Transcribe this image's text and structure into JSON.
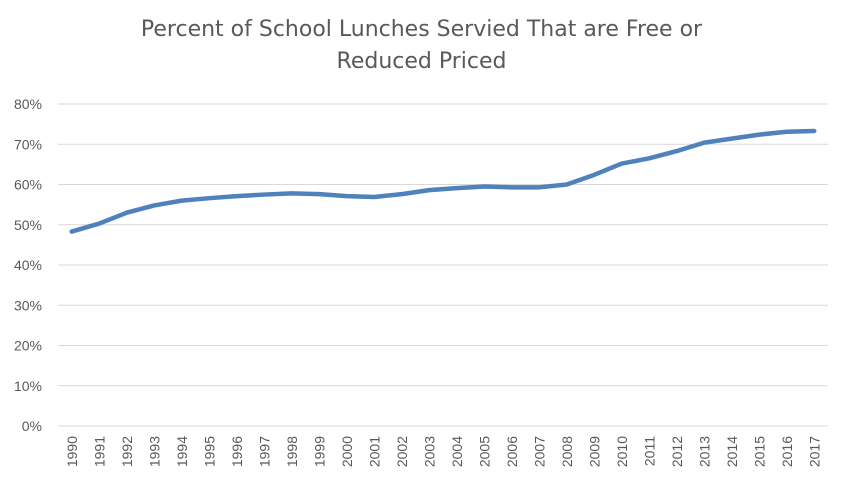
{
  "chart_data": {
    "type": "line",
    "title": "Percent of School Lunches Servied That are Free or Reduced Priced",
    "title_lines": [
      "Percent of School Lunches Servied That are Free or",
      "Reduced Priced"
    ],
    "xlabel": "",
    "ylabel": "",
    "x": [
      "1990",
      "1991",
      "1992",
      "1993",
      "1994",
      "1995",
      "1996",
      "1997",
      "1998",
      "1999",
      "2000",
      "2001",
      "2002",
      "2003",
      "2004",
      "2005",
      "2006",
      "2007",
      "2008",
      "2009",
      "2010",
      "2011",
      "2012",
      "2013",
      "2014",
      "2015",
      "2016",
      "2017"
    ],
    "series": [
      {
        "values": [
          48.3,
          50.3,
          53.0,
          54.8,
          56.0,
          56.6,
          57.1,
          57.5,
          57.8,
          57.6,
          57.1,
          56.9,
          57.6,
          58.6,
          59.1,
          59.5,
          59.3,
          59.3,
          60.0,
          62.4,
          65.2,
          66.5,
          68.3,
          70.4,
          71.4,
          72.4,
          73.1,
          73.3
        ],
        "color": "#4f81bd"
      }
    ],
    "ylim": [
      0,
      80
    ],
    "yticks": [
      "0%",
      "10%",
      "20%",
      "30%",
      "40%",
      "50%",
      "60%",
      "70%",
      "80%"
    ],
    "grid": true,
    "legend": "none",
    "gridline_color": "#d9d9d9",
    "text_color": "#595959"
  }
}
